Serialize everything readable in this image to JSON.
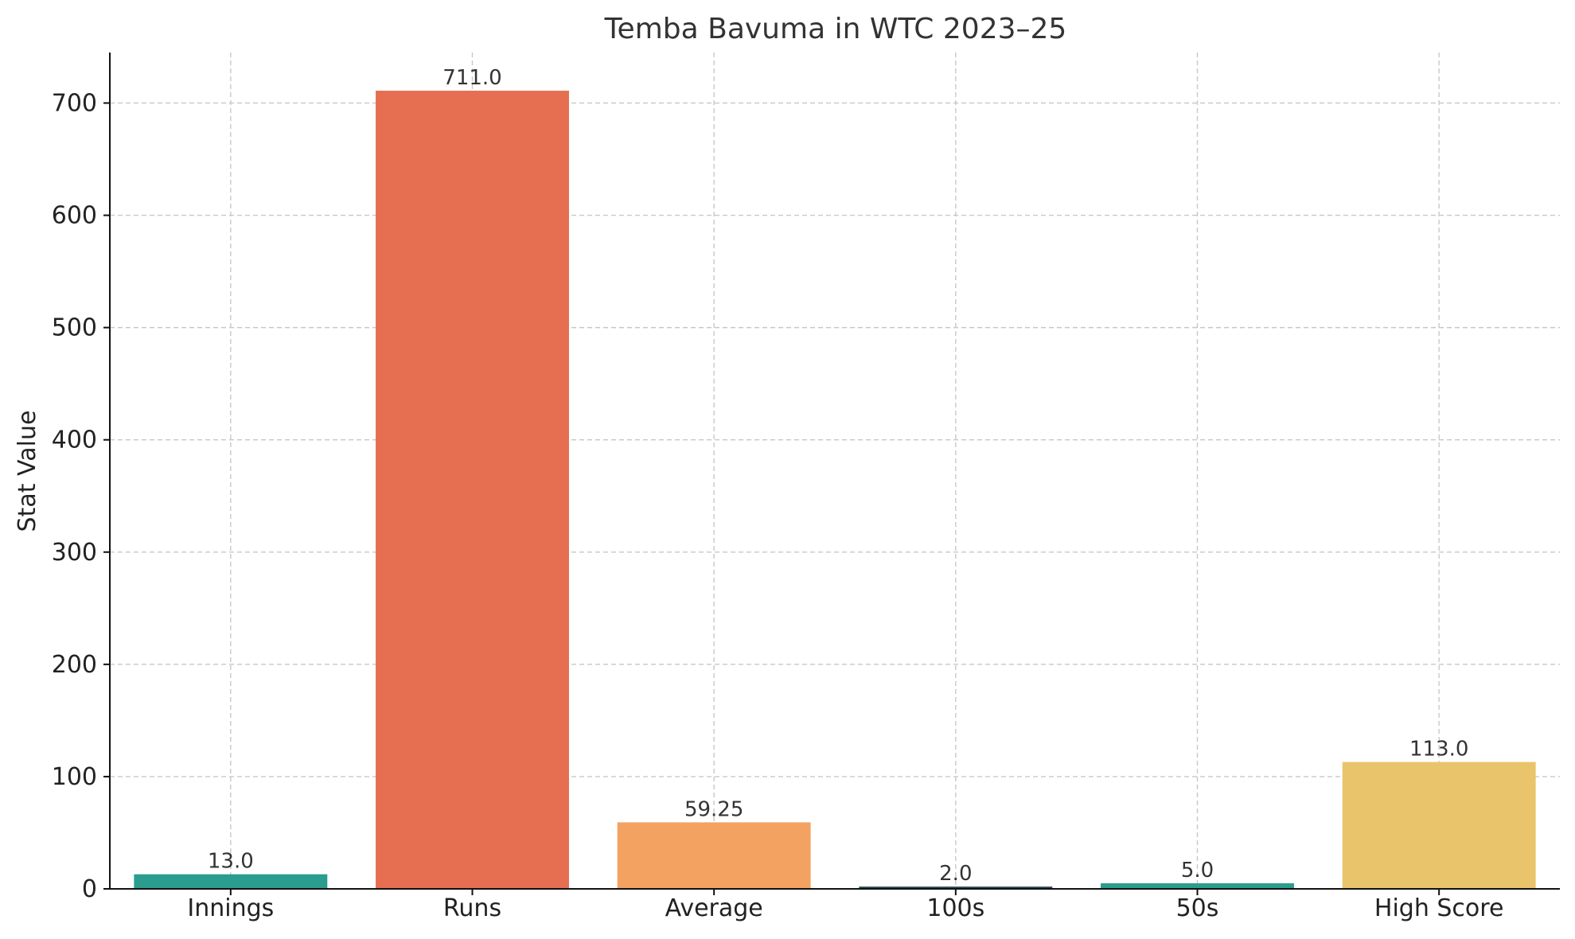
{
  "chart_data": {
    "type": "bar",
    "title": "Temba Bavuma in WTC 2023–25",
    "xlabel": "",
    "ylabel": "Stat Value",
    "categories": [
      "Innings",
      "Runs",
      "Average",
      "100s",
      "50s",
      "High Score"
    ],
    "values": [
      13.0,
      711.0,
      59.25,
      2.0,
      5.0,
      113.0
    ],
    "value_labels": [
      "13.0",
      "711.0",
      "59.25",
      "2.0",
      "5.0",
      "113.0"
    ],
    "colors": [
      "#2a9d8f",
      "#e76f51",
      "#f4a261",
      "#264653",
      "#2a9d8f",
      "#e9c46a"
    ],
    "yticks": [
      0,
      100,
      200,
      300,
      400,
      500,
      600,
      700
    ],
    "ylim": [
      0,
      745
    ],
    "grid": true,
    "legend": "none"
  }
}
